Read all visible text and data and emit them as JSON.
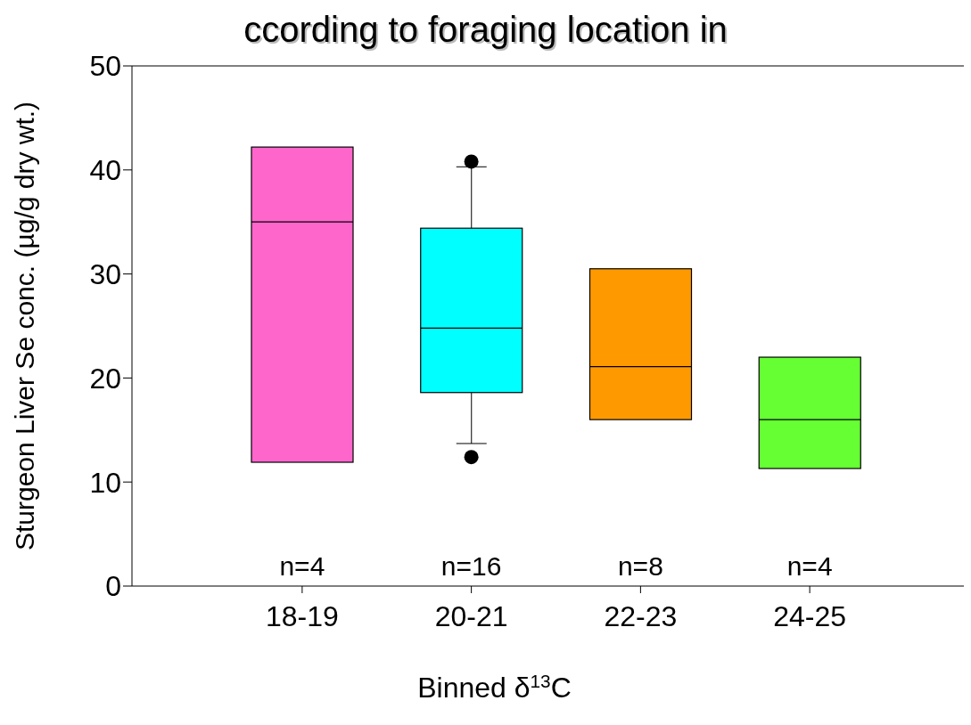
{
  "chart_data": {
    "type": "box",
    "title": "ccording to foraging location in",
    "xlabel": "Binned δ$^{13}$C",
    "ylabel": "Sturgeon Liver Se conc. (µg/g dry wt.)",
    "categories": [
      "18-19",
      "20-21",
      "22-23",
      "24-25"
    ],
    "colors": [
      "#ff66cc",
      "#00ffff",
      "#ff9900",
      "#66ff33"
    ],
    "boxes": [
      {
        "low": 11.9,
        "q1": 11.9,
        "median": 35.0,
        "q3": 42.2,
        "high": 42.2
      },
      {
        "low": 13.7,
        "q1": 18.6,
        "median": 24.8,
        "q3": 34.4,
        "high": 40.3,
        "outliers": [
          40.8,
          12.4
        ]
      },
      {
        "low": 16.0,
        "q1": 16.0,
        "median": 21.1,
        "q3": 30.5,
        "high": 30.5
      },
      {
        "low": 11.3,
        "q1": 11.3,
        "median": 16.0,
        "q3": 22.0,
        "high": 22.0
      }
    ],
    "ylim": [
      0,
      50
    ],
    "yticks": [
      0,
      10,
      20,
      30,
      40,
      50
    ],
    "annotations": [
      "n=4",
      "n=16",
      "n=8",
      "n=4"
    ]
  }
}
